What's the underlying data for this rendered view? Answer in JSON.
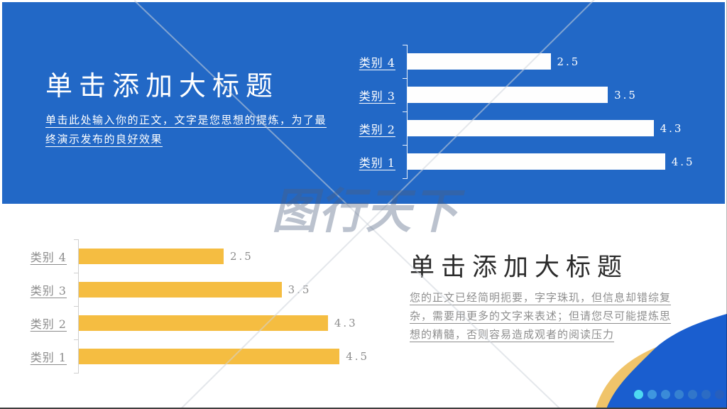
{
  "slide": {
    "top_section": {
      "title": "单击添加大标题",
      "body": "单击此处输入你的正文，文字是您思想的提炼，为了最终演示发布的良好效果",
      "background": "#2268C6",
      "text_color": "#FFFFFF"
    },
    "bottom_section": {
      "title": "单击添加大标题",
      "body": "您的正文已经简明扼要，字字珠玑，但信息却错综复杂，需要用更多的文字来表述；但请您尽可能提炼思想的精髓，否则容易造成观者的阅读压力",
      "title_color": "#2B2B2B",
      "body_color": "#8E8E8E"
    },
    "watermark_text": "图行天下",
    "decor": {
      "wave_blue": "#1A5ECF",
      "wave_yellow": "#F0C46A"
    },
    "pagination_dots": [
      "#4ED9F2",
      "#3E96DF",
      "#3A8BD8",
      "#3681D1",
      "#3176CA",
      "#2C6CC4",
      "#275FBD"
    ]
  },
  "chart_data": [
    {
      "type": "bar",
      "orientation": "horizontal",
      "title": "",
      "categories": [
        "类别 4",
        "类别 3",
        "类别 2",
        "类别 1"
      ],
      "values": [
        2.5,
        3.5,
        4.3,
        4.5
      ],
      "value_labels": [
        "2.5",
        "3.5",
        "4.3",
        "4.5"
      ],
      "xlim": [
        0,
        5
      ],
      "grid": false,
      "legend": false,
      "bar_color": "#FEFEFE",
      "label_color": "#FFFFFF",
      "value_color": "#FFFFFF",
      "axis_color": "rgba(255,255,255,0.9)",
      "position": "top-right-on-blue"
    },
    {
      "type": "bar",
      "orientation": "horizontal",
      "title": "",
      "categories": [
        "类别 4",
        "类别 3",
        "类别 2",
        "类别 1"
      ],
      "values": [
        2.5,
        3.5,
        4.3,
        4.5
      ],
      "value_labels": [
        "2.5",
        "3.5",
        "4.3",
        "4.5"
      ],
      "xlim": [
        0,
        5
      ],
      "grid": false,
      "legend": false,
      "bar_color": "#F5BD41",
      "label_color": "#8C8C8C",
      "value_color": "#8C8C8C",
      "axis_color": "#CFCFCF",
      "position": "bottom-left-on-white"
    }
  ]
}
